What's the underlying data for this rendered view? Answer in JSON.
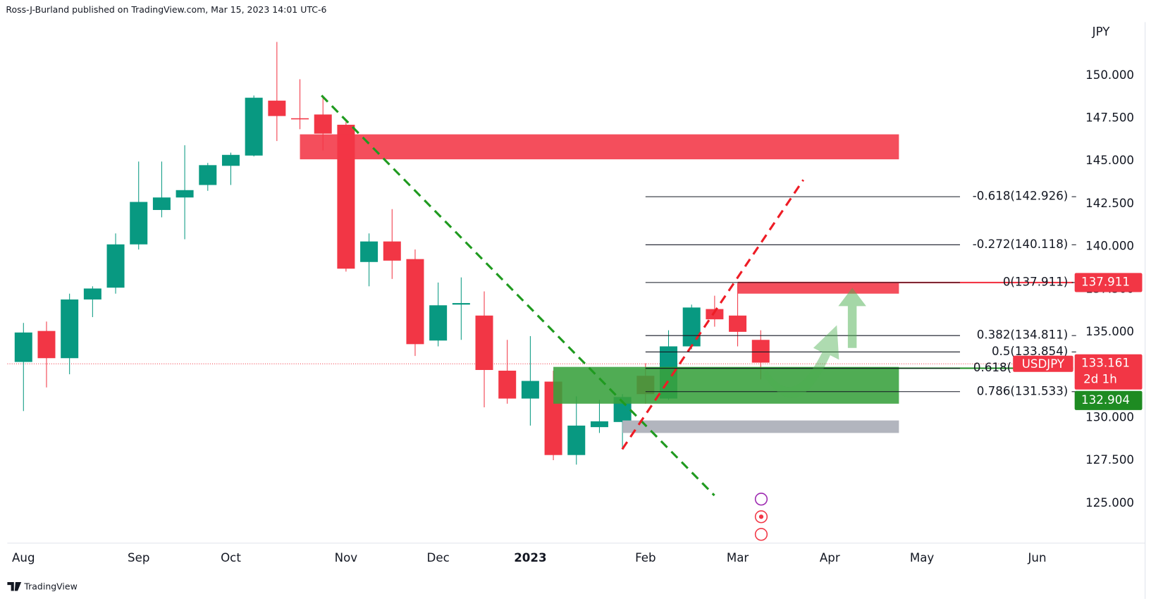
{
  "header": {
    "publisher": "Ross-J-Burland published on TradingView.com, Mar 15, 2023 14:01 UTC-6"
  },
  "footer": {
    "brand": "TradingView"
  },
  "chart_data": {
    "type": "candlestick",
    "symbol": "USDJPY",
    "y_axis_label": "JPY",
    "x": [
      0,
      1,
      2,
      3,
      4,
      5,
      6,
      7,
      8,
      9,
      10,
      11,
      12,
      13,
      14,
      15,
      16,
      17,
      18,
      19,
      20,
      21,
      22,
      23,
      24,
      25,
      26,
      27,
      28,
      29,
      30,
      31,
      32
    ],
    "open": [
      133.27,
      135.08,
      133.49,
      136.92,
      137.61,
      140.14,
      142.15,
      142.88,
      143.61,
      144.73,
      145.33,
      148.54,
      147.51,
      147.73,
      147.13,
      139.11,
      140.31,
      139.28,
      134.52,
      136.62,
      135.98,
      132.76,
      131.13,
      132.12,
      127.83,
      129.46,
      129.76,
      132.46,
      131.13,
      134.18,
      136.36,
      135.98,
      134.56
    ],
    "high": [
      135.55,
      135.63,
      137.26,
      137.69,
      140.78,
      144.98,
      144.98,
      145.93,
      144.9,
      145.5,
      148.84,
      151.97,
      149.79,
      148.84,
      147.3,
      140.78,
      142.2,
      139.84,
      137.91,
      138.21,
      137.39,
      134.56,
      134.78,
      132.76,
      131.26,
      131.05,
      131.39,
      133.19,
      135.12,
      136.62,
      137.14,
      137.86,
      135.12
    ],
    "low": [
      130.4,
      131.78,
      132.55,
      135.89,
      137.26,
      139.84,
      141.72,
      140.44,
      143.27,
      143.61,
      145.28,
      146.18,
      146.87,
      145.63,
      138.55,
      137.69,
      138.12,
      133.62,
      134.18,
      134.56,
      130.62,
      130.83,
      129.55,
      127.53,
      127.27,
      129.12,
      128.17,
      130.83,
      131.05,
      134.01,
      135.33,
      134.18,
      132.25
    ],
    "close": [
      134.99,
      133.49,
      136.92,
      137.56,
      140.14,
      142.62,
      142.88,
      143.31,
      144.77,
      145.37,
      148.71,
      147.64,
      147.49,
      146.61,
      138.72,
      140.31,
      139.19,
      134.31,
      136.58,
      136.71,
      132.8,
      131.13,
      132.16,
      127.83,
      129.55,
      129.8,
      131.22,
      131.39,
      134.18,
      136.45,
      135.76,
      135.03,
      133.23
    ],
    "up_color": "#089981",
    "down_color": "#f23645",
    "xlim": [
      -0.7,
      45.5
    ],
    "xticks": [
      {
        "value": 0,
        "label": "Aug"
      },
      {
        "value": 5,
        "label": "Sep"
      },
      {
        "value": 9,
        "label": "Oct"
      },
      {
        "value": 14,
        "label": "Nov"
      },
      {
        "value": 18,
        "label": "Dec"
      },
      {
        "value": 22,
        "label": "2023"
      },
      {
        "value": 27,
        "label": "Feb"
      },
      {
        "value": 31,
        "label": "Mar"
      },
      {
        "value": 35,
        "label": "Apr"
      },
      {
        "value": 39,
        "label": "May"
      },
      {
        "value": 44,
        "label": "Jun"
      }
    ],
    "ylim": [
      122.68,
      153.13
    ],
    "yticks": [
      {
        "value": 125,
        "label": "125.000"
      },
      {
        "value": 127.5,
        "label": "127.500"
      },
      {
        "value": 130,
        "label": "130.000"
      },
      {
        "value": 132.5,
        "label": "132.500"
      },
      {
        "value": 135,
        "label": "135.000"
      },
      {
        "value": 137.5,
        "label": "137.500"
      },
      {
        "value": 140,
        "label": "140.000"
      },
      {
        "value": 142.5,
        "label": "142.500"
      },
      {
        "value": 145,
        "label": "145.000"
      },
      {
        "value": 147.5,
        "label": "147.500"
      },
      {
        "value": 150,
        "label": "150.000"
      }
    ],
    "zones": [
      {
        "x": [
          12,
          38
        ],
        "y": [
          145.11,
          146.57
        ],
        "color": "rgba(242,54,69,0.88)"
      },
      {
        "x": [
          31,
          38
        ],
        "y": [
          137.26,
          137.95
        ],
        "color": "rgba(242,54,69,0.88)"
      },
      {
        "x": [
          23,
          38
        ],
        "y": [
          130.83,
          132.98
        ],
        "color": "rgba(56,160,60,0.88)"
      },
      {
        "x": [
          26,
          38
        ],
        "y": [
          129.12,
          129.85
        ],
        "color": "rgba(178,181,190,1)"
      }
    ],
    "fib_x": [
      27,
      40.65
    ],
    "fib_levels": [
      {
        "value": 142.926,
        "label": "-0.618(142.926)"
      },
      {
        "value": 140.118,
        "label": "-0.272(140.118)"
      },
      {
        "value": 137.911,
        "label": "0(137.911)"
      },
      {
        "value": 134.811,
        "label": "0.382(134.811)"
      },
      {
        "value": 133.854,
        "label": "0.5(133.854)"
      },
      {
        "value": 132.896,
        "label": "0.618("
      },
      {
        "value": 131.533,
        "label": "0.786(131.533)"
      }
    ],
    "trendlines": [
      {
        "x": [
          12.94,
          29.99
        ],
        "y": [
          148.84,
          125.47
        ],
        "color": "#1f9a1f"
      },
      {
        "x": [
          25.99,
          33.85
        ],
        "y": [
          128.17,
          143.91
        ],
        "color": "#ee1c25"
      }
    ],
    "last_price": {
      "value": 133.161,
      "countdown": "2d 1h",
      "color": "#f23645"
    },
    "price_labels": [
      {
        "value": 137.911,
        "color": "#f23645",
        "line_x": 31
      },
      {
        "value": 132.904,
        "color": "#1e8b22",
        "line_x": 27
      }
    ]
  }
}
